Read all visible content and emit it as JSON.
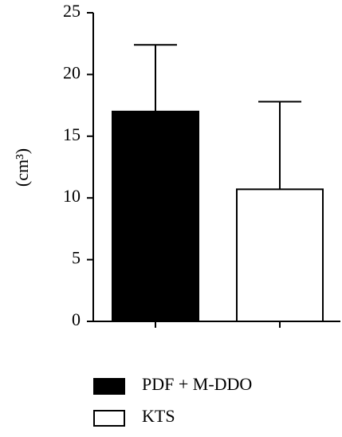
{
  "chart_data": {
    "type": "bar",
    "ylabel": "(cm³)",
    "categories": [
      "PDF + M-DDO",
      "KTS"
    ],
    "values": [
      17.0,
      10.7
    ],
    "errors": [
      5.4,
      7.1
    ],
    "colors": [
      "#000000",
      "#ffffff"
    ],
    "ylim": [
      0,
      25
    ],
    "yticks": [
      0,
      5,
      10,
      15,
      20,
      25
    ],
    "grid": false
  }
}
